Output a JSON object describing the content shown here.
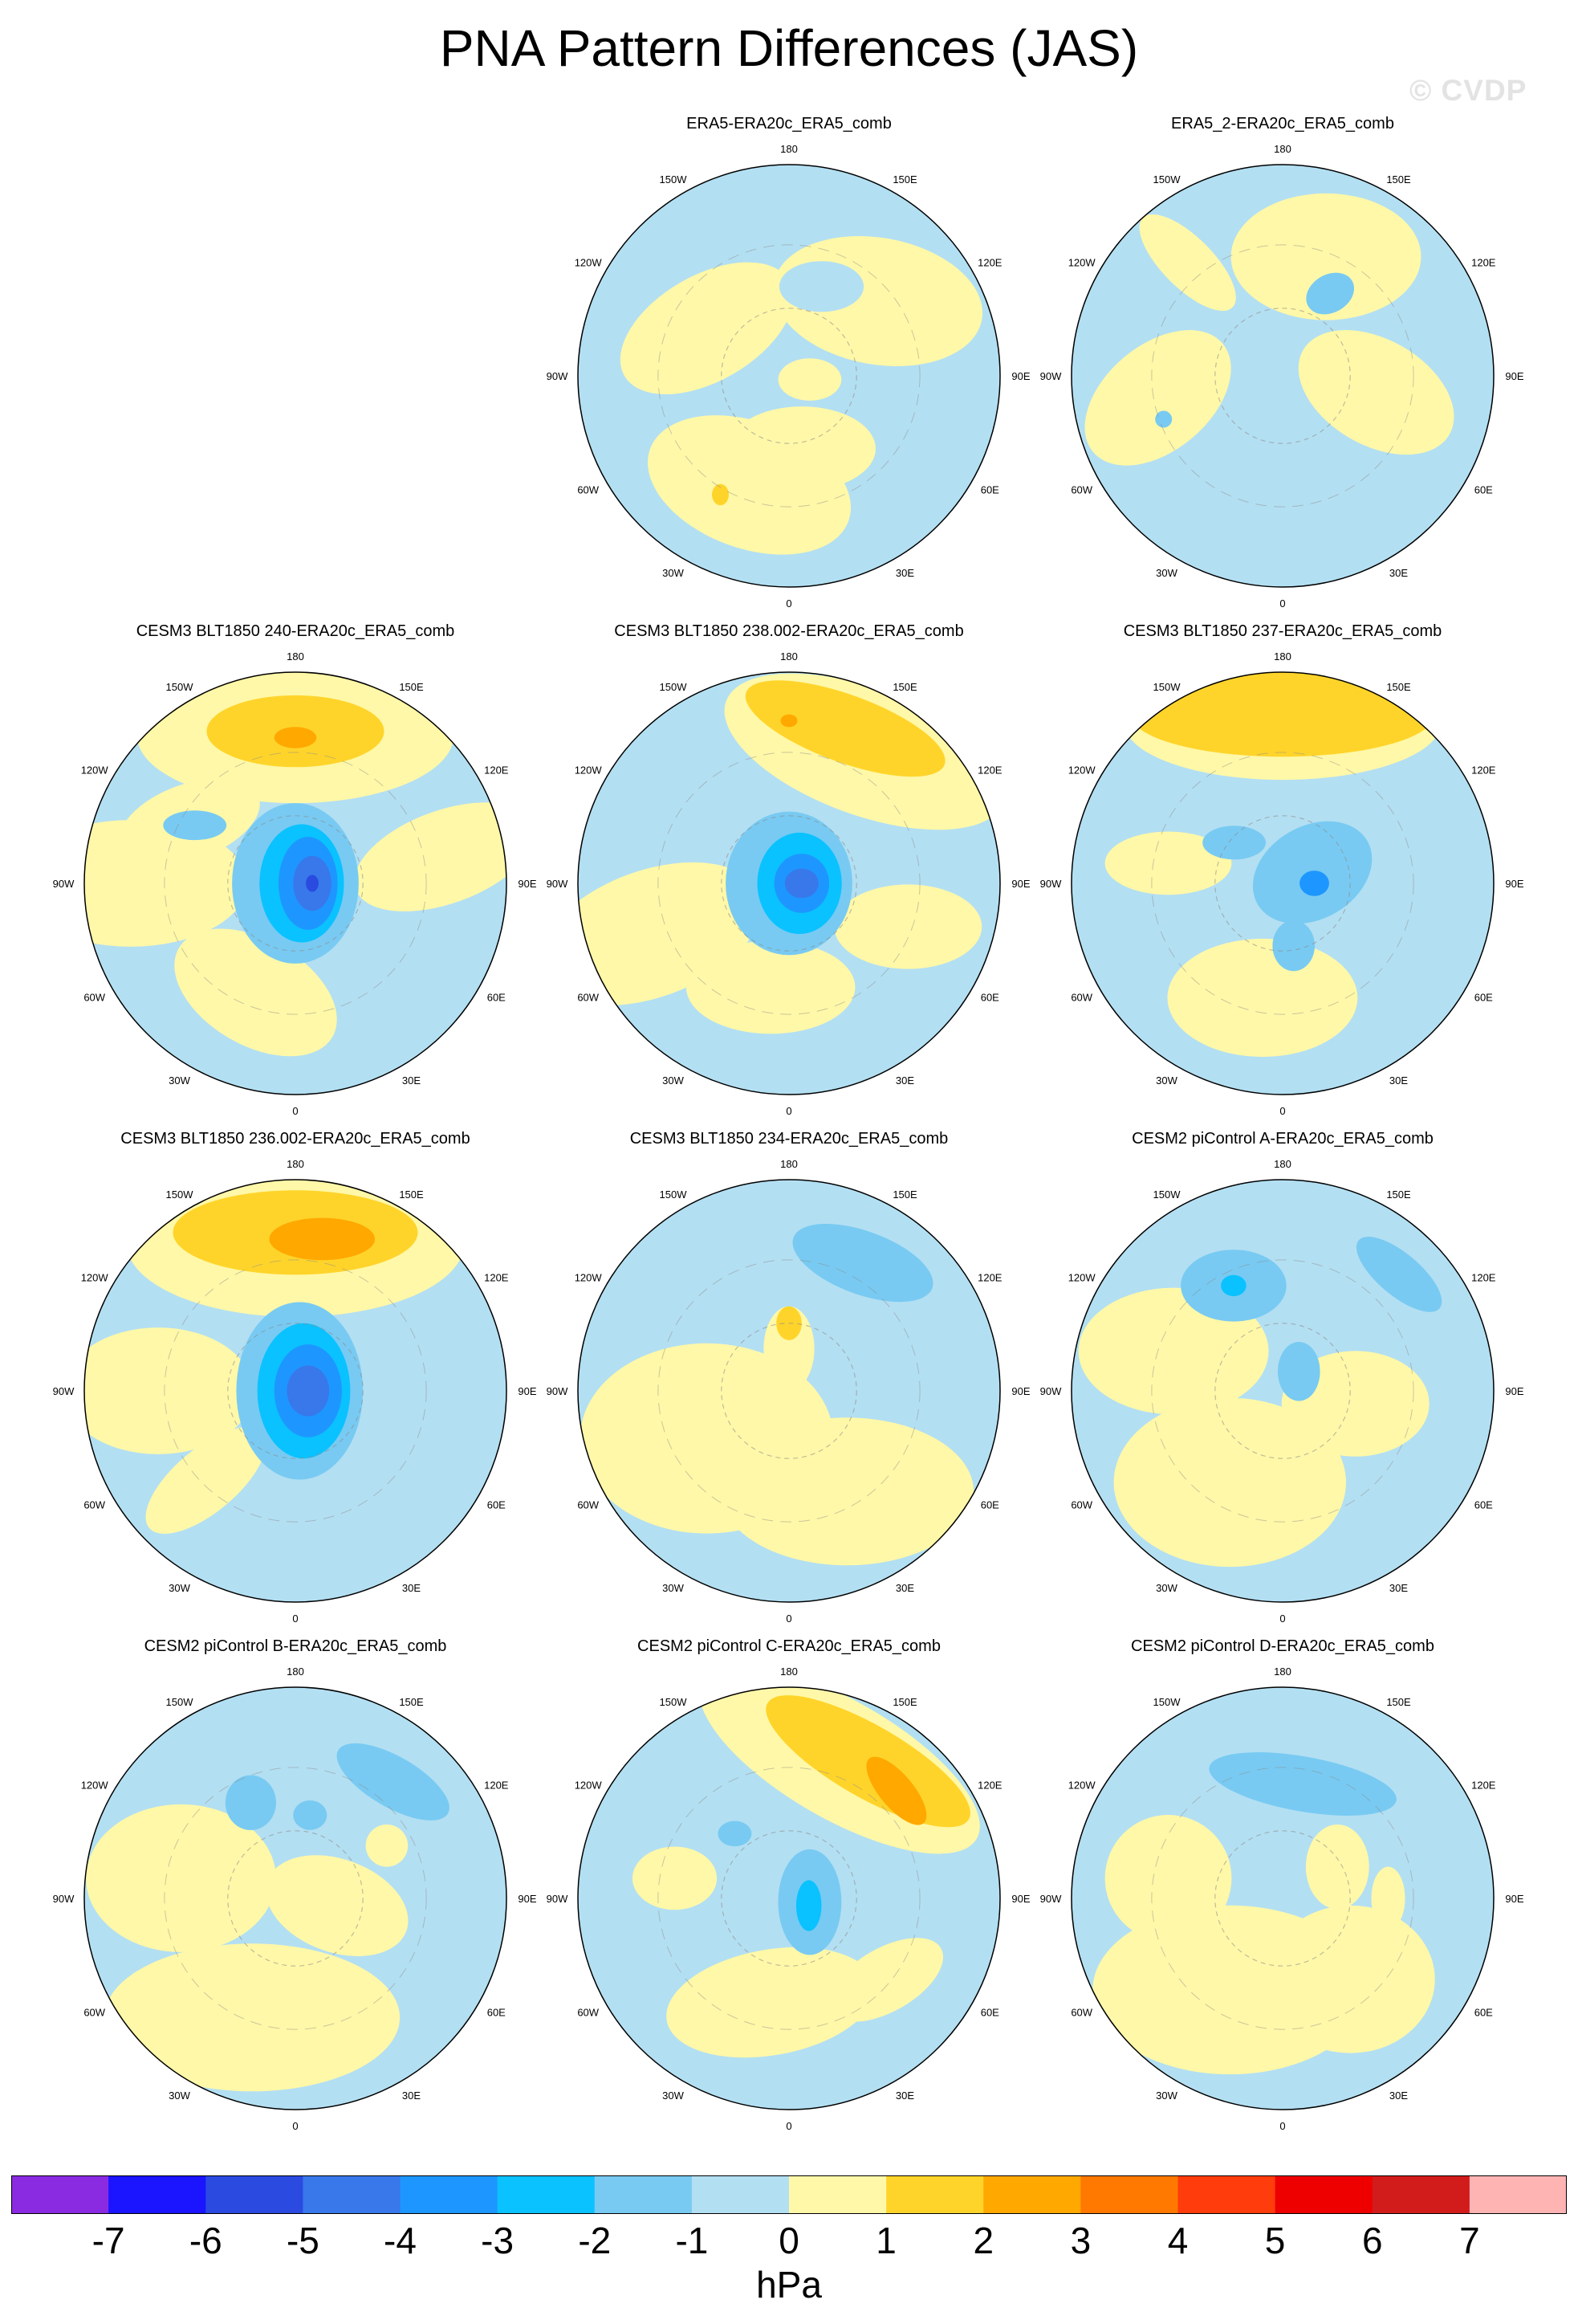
{
  "title": "PNA Pattern Differences (JAS)",
  "watermark": "© CVDP",
  "chart_data": {
    "type": "heatmap",
    "projection": "north polar stereographic",
    "variable": "PNA pattern difference",
    "units": "hPa",
    "longitude_labels": [
      "180",
      "150E",
      "120E",
      "90E",
      "60E",
      "30E",
      "0",
      "30W",
      "60W",
      "90W",
      "120W",
      "150W"
    ],
    "colorbar": {
      "ticks": [
        "-7",
        "-6",
        "-5",
        "-4",
        "-3",
        "-2",
        "-1",
        "0",
        "1",
        "2",
        "3",
        "4",
        "5",
        "6",
        "7"
      ],
      "colors": [
        "#8a2be2",
        "#1a14ff",
        "#2a4ae0",
        "#3878ea",
        "#1e96ff",
        "#0ac2ff",
        "#78caf2",
        "#b3dff2",
        "#fff8a8",
        "#ffd42a",
        "#ffa800",
        "#ff7800",
        "#ff3c0c",
        "#ee0000",
        "#d21c1c",
        "#ffb4b4"
      ]
    },
    "panels": [
      {
        "title": "ERA5-ERA20c_ERA5_comb",
        "row": 0,
        "col": 1,
        "features": [
          {
            "v": 0.5,
            "a": -40,
            "d": 0.55,
            "rx": 0.5,
            "ry": 0.3,
            "r": 10
          },
          {
            "v": 0.5,
            "a": 110,
            "d": 0.55,
            "rx": 0.5,
            "ry": 0.3,
            "r": 20
          },
          {
            "v": 0.5,
            "a": -150,
            "d": 0.45,
            "rx": 0.45,
            "ry": 0.25,
            "r": -30
          },
          {
            "v": 0.5,
            "a": 80,
            "d": 0.35,
            "rx": 0.35,
            "ry": 0.2,
            "r": 0
          },
          {
            "v": 0.5,
            "a": 10,
            "d": 0.1,
            "rx": 0.15,
            "ry": 0.1,
            "r": 0
          },
          {
            "v": -0.5,
            "a": -70,
            "d": 0.45,
            "rx": 0.2,
            "ry": 0.12,
            "r": 0
          },
          {
            "v": 1.5,
            "a": 120,
            "d": 0.65,
            "rx": 0.04,
            "ry": 0.05,
            "r": 0
          }
        ]
      },
      {
        "title": "ERA5_2-ERA20c_ERA5_comb",
        "row": 0,
        "col": 2,
        "features": [
          {
            "v": 0.5,
            "a": -70,
            "d": 0.6,
            "rx": 0.45,
            "ry": 0.3,
            "r": 0
          },
          {
            "v": 0.5,
            "a": 170,
            "d": 0.6,
            "rx": 0.4,
            "ry": 0.25,
            "r": -40
          },
          {
            "v": 0.5,
            "a": 10,
            "d": 0.45,
            "rx": 0.4,
            "ry": 0.25,
            "r": 30
          },
          {
            "v": 0.5,
            "a": -130,
            "d": 0.7,
            "rx": 0.3,
            "ry": 0.12,
            "r": 45
          },
          {
            "v": -1.5,
            "a": -60,
            "d": 0.45,
            "rx": 0.12,
            "ry": 0.09,
            "r": -30
          },
          {
            "v": -1.5,
            "a": 160,
            "d": 0.6,
            "rx": 0.04,
            "ry": 0.04,
            "r": 0
          }
        ]
      },
      {
        "title": "CESM3 BLT1850 240-ERA20c_ERA5_comb",
        "row": 1,
        "col": 0,
        "features": [
          {
            "v": 0.5,
            "a": -90,
            "d": 0.7,
            "rx": 0.75,
            "ry": 0.32,
            "r": 0
          },
          {
            "v": 0.5,
            "a": 180,
            "d": 0.78,
            "rx": 0.55,
            "ry": 0.3,
            "r": 0
          },
          {
            "v": 0.5,
            "a": -10,
            "d": 0.72,
            "rx": 0.45,
            "ry": 0.22,
            "r": -20
          },
          {
            "v": 0.5,
            "a": 110,
            "d": 0.55,
            "rx": 0.42,
            "ry": 0.25,
            "r": 30
          },
          {
            "v": 0.5,
            "a": -150,
            "d": 0.58,
            "rx": 0.35,
            "ry": 0.18,
            "r": -20
          },
          {
            "v": 1.5,
            "a": -90,
            "d": 0.72,
            "rx": 0.42,
            "ry": 0.17,
            "r": 0
          },
          {
            "v": 2.5,
            "a": -90,
            "d": 0.69,
            "rx": 0.1,
            "ry": 0.05,
            "r": 0
          },
          {
            "v": -1.5,
            "a": 0,
            "d": 0.0,
            "rx": 0.3,
            "ry": 0.38,
            "r": 0
          },
          {
            "v": -1.5,
            "a": -150,
            "d": 0.55,
            "rx": 0.15,
            "ry": 0.07,
            "r": 0
          },
          {
            "v": -2.5,
            "a": 0,
            "d": 0.03,
            "rx": 0.2,
            "ry": 0.28,
            "r": 0
          },
          {
            "v": -3.5,
            "a": 0,
            "d": 0.06,
            "rx": 0.14,
            "ry": 0.22,
            "r": 0
          },
          {
            "v": -4.5,
            "a": 0,
            "d": 0.08,
            "rx": 0.09,
            "ry": 0.13,
            "r": 0
          },
          {
            "v": -5.5,
            "a": 0,
            "d": 0.08,
            "rx": 0.03,
            "ry": 0.04,
            "r": 0
          }
        ]
      },
      {
        "title": "CESM3 BLT1850 238.002-ERA20c_ERA5_comb",
        "row": 1,
        "col": 1,
        "features": [
          {
            "v": 0.5,
            "a": -60,
            "d": 0.72,
            "rx": 0.7,
            "ry": 0.3,
            "r": 20
          },
          {
            "v": 0.5,
            "a": 160,
            "d": 0.7,
            "rx": 0.55,
            "ry": 0.3,
            "r": -20
          },
          {
            "v": 0.5,
            "a": 20,
            "d": 0.6,
            "rx": 0.35,
            "ry": 0.2,
            "r": 0
          },
          {
            "v": 0.5,
            "a": 100,
            "d": 0.5,
            "rx": 0.4,
            "ry": 0.22,
            "r": 0
          },
          {
            "v": 1.5,
            "a": -70,
            "d": 0.78,
            "rx": 0.5,
            "ry": 0.16,
            "r": 20
          },
          {
            "v": 2.5,
            "a": -90,
            "d": 0.77,
            "rx": 0.04,
            "ry": 0.03,
            "r": 0
          },
          {
            "v": -1.5,
            "a": 0,
            "d": 0.0,
            "rx": 0.3,
            "ry": 0.34,
            "r": 0
          },
          {
            "v": -2.5,
            "a": 0,
            "d": 0.05,
            "rx": 0.2,
            "ry": 0.24,
            "r": 0
          },
          {
            "v": -3.5,
            "a": 0,
            "d": 0.06,
            "rx": 0.13,
            "ry": 0.14,
            "r": 0
          },
          {
            "v": -4.5,
            "a": 0,
            "d": 0.06,
            "rx": 0.08,
            "ry": 0.07,
            "r": 0
          }
        ]
      },
      {
        "title": "CESM3 BLT1850 237-ERA20c_ERA5_comb",
        "row": 1,
        "col": 2,
        "features": [
          {
            "v": 0.5,
            "a": -90,
            "d": 0.76,
            "rx": 0.75,
            "ry": 0.27,
            "r": 0
          },
          {
            "v": 0.5,
            "a": 100,
            "d": 0.55,
            "rx": 0.45,
            "ry": 0.28,
            "r": 0
          },
          {
            "v": 0.5,
            "a": -170,
            "d": 0.55,
            "rx": 0.3,
            "ry": 0.15,
            "r": 0
          },
          {
            "v": 1.5,
            "a": -90,
            "d": 0.8,
            "rx": 0.72,
            "ry": 0.2,
            "r": 0
          },
          {
            "v": -1.5,
            "a": -20,
            "d": 0.15,
            "rx": 0.3,
            "ry": 0.22,
            "r": -30
          },
          {
            "v": -1.5,
            "a": -140,
            "d": 0.3,
            "rx": 0.15,
            "ry": 0.08,
            "r": 0
          },
          {
            "v": -1.5,
            "a": 80,
            "d": 0.3,
            "rx": 0.1,
            "ry": 0.12,
            "r": 0
          },
          {
            "v": -3.5,
            "a": 0,
            "d": 0.15,
            "rx": 0.07,
            "ry": 0.06,
            "r": 0
          }
        ]
      },
      {
        "title": "CESM3 BLT1850 236.002-ERA20c_ERA5_comb",
        "row": 2,
        "col": 0,
        "features": [
          {
            "v": 0.5,
            "a": -90,
            "d": 0.7,
            "rx": 0.8,
            "ry": 0.35,
            "r": 0
          },
          {
            "v": 0.5,
            "a": 180,
            "d": 0.65,
            "rx": 0.45,
            "ry": 0.3,
            "r": 0
          },
          {
            "v": 0.5,
            "a": 135,
            "d": 0.6,
            "rx": 0.35,
            "ry": 0.15,
            "r": -40
          },
          {
            "v": 1.5,
            "a": -90,
            "d": 0.75,
            "rx": 0.58,
            "ry": 0.2,
            "r": 0
          },
          {
            "v": 2.5,
            "a": -80,
            "d": 0.73,
            "rx": 0.25,
            "ry": 0.1,
            "r": 0
          },
          {
            "v": -1.5,
            "a": 0,
            "d": 0.02,
            "rx": 0.3,
            "ry": 0.42,
            "r": 0
          },
          {
            "v": -2.5,
            "a": 0,
            "d": 0.04,
            "rx": 0.22,
            "ry": 0.32,
            "r": 0
          },
          {
            "v": -3.5,
            "a": 0,
            "d": 0.06,
            "rx": 0.16,
            "ry": 0.22,
            "r": 0
          },
          {
            "v": -4.5,
            "a": 0,
            "d": 0.06,
            "rx": 0.1,
            "ry": 0.12,
            "r": 0
          }
        ]
      },
      {
        "title": "CESM3 BLT1850 234-ERA20c_ERA5_comb",
        "row": 2,
        "col": 1,
        "features": [
          {
            "v": 0.5,
            "a": 150,
            "d": 0.45,
            "rx": 0.6,
            "ry": 0.45,
            "r": 0
          },
          {
            "v": 0.5,
            "a": 60,
            "d": 0.55,
            "rx": 0.6,
            "ry": 0.35,
            "r": 0
          },
          {
            "v": 0.5,
            "a": 100,
            "d": 0.2,
            "rx": 0.15,
            "ry": 0.35,
            "r": 0
          },
          {
            "v": 0.5,
            "a": -90,
            "d": 0.2,
            "rx": 0.12,
            "ry": 0.2,
            "r": 0
          },
          {
            "v": -1.5,
            "a": -60,
            "d": 0.7,
            "rx": 0.35,
            "ry": 0.15,
            "r": 20
          },
          {
            "v": 1.5,
            "a": -90,
            "d": 0.32,
            "rx": 0.06,
            "ry": 0.08,
            "r": 0
          }
        ]
      },
      {
        "title": "CESM2 piControl A-ERA20c_ERA5_comb",
        "row": 2,
        "col": 2,
        "features": [
          {
            "v": 0.5,
            "a": 120,
            "d": 0.5,
            "rx": 0.55,
            "ry": 0.4,
            "r": 0
          },
          {
            "v": 0.5,
            "a": -160,
            "d": 0.55,
            "rx": 0.45,
            "ry": 0.3,
            "r": 0
          },
          {
            "v": 0.5,
            "a": 10,
            "d": 0.35,
            "rx": 0.35,
            "ry": 0.25,
            "r": 0
          },
          {
            "v": -1.5,
            "a": -115,
            "d": 0.55,
            "rx": 0.25,
            "ry": 0.17,
            "r": 0
          },
          {
            "v": -1.5,
            "a": -45,
            "d": 0.78,
            "rx": 0.25,
            "ry": 0.1,
            "r": 40
          },
          {
            "v": -1.5,
            "a": -50,
            "d": 0.12,
            "rx": 0.1,
            "ry": 0.14,
            "r": 0
          },
          {
            "v": -2.5,
            "a": -115,
            "d": 0.55,
            "rx": 0.06,
            "ry": 0.05,
            "r": 0
          }
        ]
      },
      {
        "title": "CESM2 piControl B-ERA20c_ERA5_comb",
        "row": 3,
        "col": 0,
        "features": [
          {
            "v": 0.5,
            "a": -170,
            "d": 0.55,
            "rx": 0.45,
            "ry": 0.35,
            "r": 0
          },
          {
            "v": 0.5,
            "a": 110,
            "d": 0.6,
            "rx": 0.7,
            "ry": 0.35,
            "r": 0
          },
          {
            "v": 0.5,
            "a": 10,
            "d": 0.2,
            "rx": 0.35,
            "ry": 0.22,
            "r": 20
          },
          {
            "v": 0.5,
            "a": -30,
            "d": 0.5,
            "rx": 0.1,
            "ry": 0.1,
            "r": 0
          },
          {
            "v": -1.5,
            "a": -50,
            "d": 0.72,
            "rx": 0.3,
            "ry": 0.12,
            "r": 30
          },
          {
            "v": -1.5,
            "a": -115,
            "d": 0.5,
            "rx": 0.12,
            "ry": 0.13,
            "r": 0
          },
          {
            "v": -1.5,
            "a": -80,
            "d": 0.4,
            "rx": 0.08,
            "ry": 0.07,
            "r": 0
          }
        ]
      },
      {
        "title": "CESM2 piControl C-ERA20c_ERA5_comb",
        "row": 3,
        "col": 1,
        "features": [
          {
            "v": 0.5,
            "a": -70,
            "d": 0.7,
            "rx": 0.75,
            "ry": 0.28,
            "r": 30
          },
          {
            "v": 0.5,
            "a": 100,
            "d": 0.5,
            "rx": 0.5,
            "ry": 0.25,
            "r": -10
          },
          {
            "v": 0.5,
            "a": -170,
            "d": 0.55,
            "rx": 0.2,
            "ry": 0.15,
            "r": 0
          },
          {
            "v": 0.5,
            "a": 40,
            "d": 0.6,
            "rx": 0.3,
            "ry": 0.15,
            "r": -30
          },
          {
            "v": 1.5,
            "a": -60,
            "d": 0.75,
            "rx": 0.55,
            "ry": 0.17,
            "r": 30
          },
          {
            "v": 2.5,
            "a": -45,
            "d": 0.72,
            "rx": 0.2,
            "ry": 0.08,
            "r": 50
          },
          {
            "v": -1.5,
            "a": 10,
            "d": 0.1,
            "rx": 0.15,
            "ry": 0.25,
            "r": 0
          },
          {
            "v": -1.5,
            "a": -130,
            "d": 0.4,
            "rx": 0.08,
            "ry": 0.06,
            "r": 0
          },
          {
            "v": -2.5,
            "a": 20,
            "d": 0.1,
            "rx": 0.06,
            "ry": 0.12,
            "r": 0
          }
        ]
      },
      {
        "title": "CESM2 piControl D-ERA20c_ERA5_comb",
        "row": 3,
        "col": 2,
        "features": [
          {
            "v": 0.5,
            "a": -170,
            "d": 0.55,
            "rx": 0.3,
            "ry": 0.3,
            "r": 0
          },
          {
            "v": 0.5,
            "a": 120,
            "d": 0.5,
            "rx": 0.65,
            "ry": 0.4,
            "r": 0
          },
          {
            "v": 0.5,
            "a": 50,
            "d": 0.5,
            "rx": 0.4,
            "ry": 0.35,
            "r": 0
          },
          {
            "v": 0.5,
            "a": -30,
            "d": 0.3,
            "rx": 0.15,
            "ry": 0.2,
            "r": 0
          },
          {
            "v": 0.5,
            "a": 0,
            "d": 0.5,
            "rx": 0.08,
            "ry": 0.15,
            "r": 0
          },
          {
            "v": -1.5,
            "a": -80,
            "d": 0.55,
            "rx": 0.45,
            "ry": 0.13,
            "r": 10
          }
        ]
      }
    ]
  }
}
